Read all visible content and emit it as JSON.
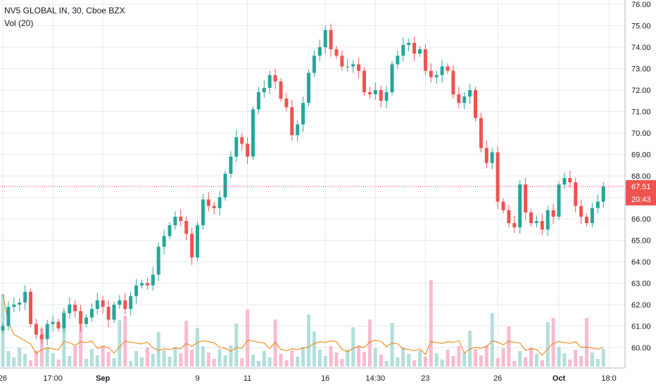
{
  "header": {
    "title": "NV5 GLOBAL IN, 30, Cboe BZX",
    "indicator": "Vol (20)"
  },
  "colors": {
    "up": "#26a69a",
    "down": "#ef5350",
    "up_vol": "#b2dfdb",
    "down_vol": "#f8bbd0",
    "ma": "#f57c00",
    "price_line": "#e91e63",
    "grid": "#e6e9ef",
    "axis_text": "#131722"
  },
  "chart_data": {
    "type": "candlestick",
    "title": "NV5 GLOBAL IN, 30, Cboe BZX",
    "ylim": [
      59.3,
      76.2
    ],
    "y_ticks": [
      "76.00",
      "75.00",
      "74.00",
      "73.00",
      "72.00",
      "71.00",
      "70.00",
      "69.00",
      "68.00",
      "67.00",
      "66.00",
      "65.00",
      "64.00",
      "63.00",
      "62.00",
      "61.00",
      "60.00"
    ],
    "x_ticks": [
      {
        "label": "26",
        "idx": 0
      },
      {
        "label": "17:00",
        "idx": 9
      },
      {
        "label": "Sep",
        "idx": 18,
        "bold": true
      },
      {
        "label": "9",
        "idx": 35
      },
      {
        "label": "11",
        "idx": 44
      },
      {
        "label": "16",
        "idx": 58
      },
      {
        "label": "14:30",
        "idx": 67
      },
      {
        "label": "23",
        "idx": 76
      },
      {
        "label": "26",
        "idx": 89
      },
      {
        "label": "Oct",
        "idx": 100,
        "bold": true
      },
      {
        "label": "18:0",
        "idx": 109
      }
    ],
    "closes": [
      61.0,
      61.9,
      62.0,
      62.1,
      62.6,
      61.1,
      60.6,
      60.4,
      61.1,
      61.2,
      60.9,
      61.6,
      62.0,
      61.7,
      61.1,
      61.4,
      61.8,
      62.2,
      61.9,
      61.3,
      62.0,
      62.2,
      61.8,
      62.4,
      62.9,
      63.0,
      62.9,
      63.4,
      64.7,
      65.2,
      65.7,
      66.1,
      65.9,
      65.3,
      64.2,
      65.7,
      66.9,
      66.6,
      66.5,
      67.0,
      68.1,
      68.9,
      69.8,
      69.5,
      68.9,
      71.1,
      71.9,
      72.1,
      72.7,
      72.4,
      71.6,
      71.2,
      69.9,
      70.4,
      71.4,
      72.8,
      73.6,
      74.0,
      74.8,
      73.9,
      73.6,
      73.1,
      73.1,
      73.2,
      72.9,
      71.9,
      71.8,
      72.0,
      71.5,
      71.9,
      73.2,
      73.6,
      74.1,
      74.2,
      73.7,
      73.9,
      72.9,
      72.6,
      72.7,
      73.1,
      72.9,
      71.8,
      71.4,
      71.7,
      72.0,
      70.7,
      69.3,
      68.6,
      69.1,
      66.8,
      66.4,
      65.8,
      65.6,
      67.6,
      66.3,
      65.8,
      65.9,
      65.5,
      66.4,
      66.1,
      67.6,
      67.9,
      67.7,
      66.6,
      66.1,
      65.8,
      66.5,
      66.8,
      67.51
    ]
  },
  "price_labels": {
    "last": "67.51",
    "countdown": "20:43"
  }
}
